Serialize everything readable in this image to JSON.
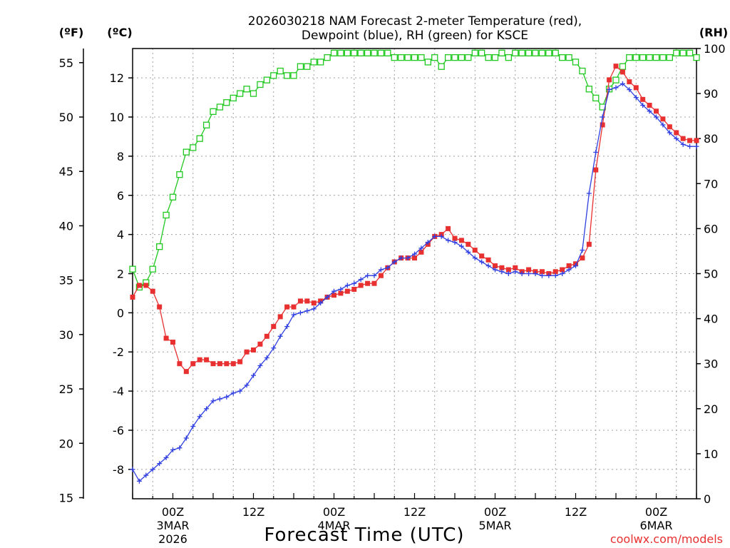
{
  "chart_data": {
    "type": "line",
    "title_line1": "2026030218 NAM Forecast 2-meter Temperature (red),",
    "title_line2": "Dewpoint (blue), RH (green) for KSCE",
    "xlabel": "Forecast Time (UTC)",
    "credit": "coolwx.com/models",
    "units": {
      "fahrenheit": "(ºF)",
      "celsius": "(ºC)",
      "rh": "(RH)"
    },
    "x_hours": [
      0,
      84
    ],
    "ylim_celsius": [
      -9.5,
      13.5
    ],
    "ylim_rh": [
      0,
      100
    ],
    "y_ticks_celsius": [
      -8,
      -6,
      -4,
      -2,
      0,
      2,
      4,
      6,
      8,
      10,
      12
    ],
    "y_ticks_fahrenheit": [
      "15",
      "20",
      "25",
      "30",
      "35",
      "40",
      "45",
      "50",
      "55"
    ],
    "y_ticks_rh": [
      "0",
      "10",
      "20",
      "30",
      "40",
      "50",
      "60",
      "70",
      "80",
      "90",
      "100"
    ],
    "x_ticks": [
      {
        "hour": 6,
        "label": "00Z",
        "date": "3MAR",
        "year": "2026"
      },
      {
        "hour": 18,
        "label": "12Z",
        "date": "",
        "year": ""
      },
      {
        "hour": 30,
        "label": "00Z",
        "date": "4MAR",
        "year": ""
      },
      {
        "hour": 42,
        "label": "12Z",
        "date": "",
        "year": ""
      },
      {
        "hour": 54,
        "label": "00Z",
        "date": "5MAR",
        "year": ""
      },
      {
        "hour": 66,
        "label": "12Z",
        "date": "",
        "year": ""
      },
      {
        "hour": 78,
        "label": "00Z",
        "date": "6MAR",
        "year": ""
      }
    ],
    "colors": {
      "temperature": "#e83030",
      "dewpoint": "#2f3fe0",
      "rh": "#20c820",
      "grid": "#a0a0a0"
    },
    "series": [
      {
        "name": "Temperature (C)",
        "hours": [
          0,
          1,
          2,
          3,
          4,
          5,
          6,
          7,
          8,
          9,
          10,
          11,
          12,
          13,
          14,
          15,
          16,
          17,
          18,
          19,
          20,
          21,
          22,
          23,
          24,
          25,
          26,
          27,
          28,
          29,
          30,
          31,
          32,
          33,
          34,
          35,
          36,
          37,
          38,
          39,
          40,
          41,
          42,
          43,
          44,
          45,
          46,
          47,
          48,
          49,
          50,
          51,
          52,
          53,
          54,
          55,
          56,
          57,
          58,
          59,
          60,
          61,
          62,
          63,
          64,
          65,
          66,
          67,
          68,
          69,
          70,
          71,
          72,
          73,
          74,
          75,
          76,
          77,
          78,
          79,
          80,
          81,
          82,
          83,
          84
        ],
        "values": [
          0.8,
          1.4,
          1.4,
          1.1,
          0.3,
          -1.3,
          -1.5,
          -2.6,
          -3.0,
          -2.6,
          -2.4,
          -2.4,
          -2.6,
          -2.6,
          -2.6,
          -2.6,
          -2.5,
          -2.0,
          -1.9,
          -1.6,
          -1.2,
          -0.7,
          -0.2,
          0.3,
          0.3,
          0.6,
          0.6,
          0.5,
          0.6,
          0.8,
          0.9,
          1.0,
          1.1,
          1.2,
          1.4,
          1.5,
          1.5,
          1.9,
          2.3,
          2.6,
          2.8,
          2.8,
          2.8,
          3.1,
          3.5,
          3.9,
          4.0,
          4.3,
          3.8,
          3.7,
          3.5,
          3.2,
          2.9,
          2.7,
          2.4,
          2.3,
          2.2,
          2.3,
          2.1,
          2.2,
          2.1,
          2.1,
          2.0,
          2.1,
          2.2,
          2.4,
          2.5,
          2.8,
          3.5,
          7.3,
          9.6,
          11.9,
          12.6,
          12.3,
          11.8,
          11.5,
          10.9,
          10.6,
          10.3,
          9.9,
          9.5,
          9.2,
          8.9,
          8.8,
          8.8
        ]
      },
      {
        "name": "Dewpoint (C)",
        "hours": [
          0,
          1,
          2,
          3,
          4,
          5,
          6,
          7,
          8,
          9,
          10,
          11,
          12,
          13,
          14,
          15,
          16,
          17,
          18,
          19,
          20,
          21,
          22,
          23,
          24,
          25,
          26,
          27,
          28,
          29,
          30,
          31,
          32,
          33,
          34,
          35,
          36,
          37,
          38,
          39,
          40,
          41,
          42,
          43,
          44,
          45,
          46,
          47,
          48,
          49,
          50,
          51,
          52,
          53,
          54,
          55,
          56,
          57,
          58,
          59,
          60,
          61,
          62,
          63,
          64,
          65,
          66,
          67,
          68,
          69,
          70,
          71,
          72,
          73,
          74,
          75,
          76,
          77,
          78,
          79,
          80,
          81,
          82,
          83,
          84
        ],
        "values": [
          -8.0,
          -8.6,
          -8.3,
          -8.0,
          -7.7,
          -7.4,
          -7.0,
          -6.9,
          -6.4,
          -5.8,
          -5.3,
          -4.9,
          -4.5,
          -4.4,
          -4.3,
          -4.1,
          -4.0,
          -3.7,
          -3.2,
          -2.7,
          -2.3,
          -1.8,
          -1.2,
          -0.7,
          -0.1,
          0.0,
          0.1,
          0.2,
          0.5,
          0.8,
          1.1,
          1.2,
          1.4,
          1.5,
          1.7,
          1.9,
          1.9,
          2.2,
          2.3,
          2.6,
          2.8,
          2.8,
          3.0,
          3.3,
          3.6,
          3.9,
          3.9,
          3.7,
          3.6,
          3.4,
          3.1,
          2.8,
          2.6,
          2.4,
          2.2,
          2.1,
          2.0,
          2.1,
          2.0,
          2.0,
          2.0,
          1.9,
          1.9,
          1.9,
          2.0,
          2.2,
          2.4,
          3.2,
          6.1,
          8.2,
          10.0,
          11.4,
          11.5,
          11.7,
          11.4,
          11.0,
          10.6,
          10.3,
          10.0,
          9.6,
          9.2,
          8.9,
          8.6,
          8.5,
          8.5
        ]
      },
      {
        "name": "RH (%)",
        "hours": [
          0,
          1,
          2,
          3,
          4,
          5,
          6,
          7,
          8,
          9,
          10,
          11,
          12,
          13,
          14,
          15,
          16,
          17,
          18,
          19,
          20,
          21,
          22,
          23,
          24,
          25,
          26,
          27,
          28,
          29,
          30,
          31,
          32,
          33,
          34,
          35,
          36,
          37,
          38,
          39,
          40,
          41,
          42,
          43,
          44,
          45,
          46,
          47,
          48,
          49,
          50,
          51,
          52,
          53,
          54,
          55,
          56,
          57,
          58,
          59,
          60,
          61,
          62,
          63,
          64,
          65,
          66,
          67,
          68,
          69,
          70,
          71,
          72,
          73,
          74,
          75,
          76,
          77,
          78,
          79,
          80,
          81,
          82,
          83,
          84
        ],
        "values": [
          51,
          47,
          48,
          51,
          56,
          63,
          67,
          72,
          77,
          78,
          80,
          83,
          86,
          87,
          88,
          89,
          90,
          91,
          90,
          92,
          93,
          94,
          95,
          94,
          94,
          96,
          96,
          97,
          97,
          98,
          99,
          99,
          99,
          99,
          99,
          99,
          99,
          99,
          99,
          98,
          98,
          98,
          98,
          98,
          97,
          98,
          96,
          98,
          98,
          98,
          98,
          99,
          99,
          98,
          98,
          99,
          98,
          99,
          99,
          99,
          99,
          99,
          99,
          99,
          98,
          98,
          97,
          95,
          91,
          89,
          87,
          91,
          93,
          96,
          98,
          98,
          98,
          98,
          98,
          98,
          98,
          99,
          99,
          99,
          98
        ]
      }
    ]
  }
}
